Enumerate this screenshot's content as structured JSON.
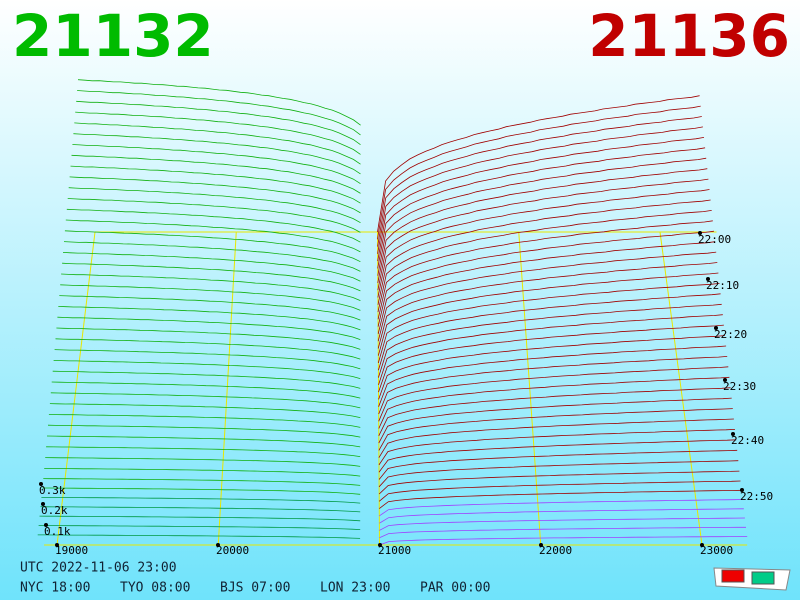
{
  "header": {
    "bid": "21132",
    "ask": "21136"
  },
  "price_ticks": [
    "19000",
    "20000",
    "21000",
    "22000",
    "23000"
  ],
  "depth_ticks": [
    "0.3k",
    "0.2k",
    "0.1k"
  ],
  "time_ticks": [
    "22:00",
    "22:10",
    "22:20",
    "22:30",
    "22:40",
    "22:50"
  ],
  "clock": {
    "utc": "UTC 2022-11-06 23:00",
    "cities": [
      "NYC 18:00",
      "TYO 08:00",
      "BJS 07:00",
      "LON 23:00",
      "PAR 00:00"
    ]
  }
}
